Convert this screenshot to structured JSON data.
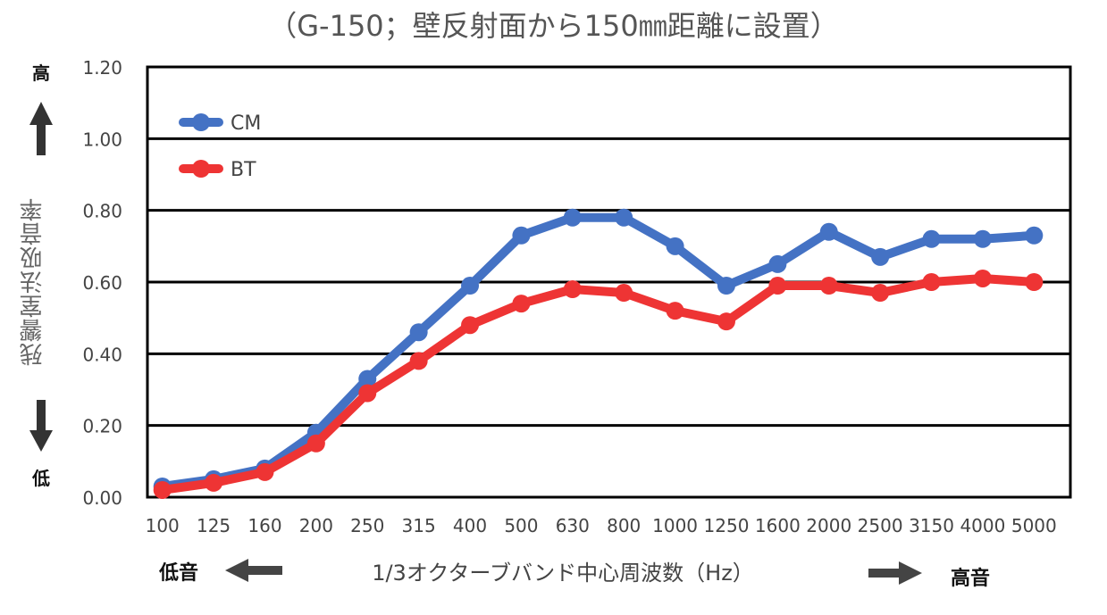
{
  "chart_data": {
    "type": "line",
    "title": "（G-150；壁反射面から150㎜距離に設置）",
    "ylabel": "残響室法吸音率",
    "xlabel": "1/3オクターブバンド中心周波数（Hz）",
    "ylim": [
      0,
      1.2
    ],
    "yticks": [
      "0.00",
      "0.20",
      "0.40",
      "0.60",
      "0.80",
      "1.00",
      "1.20"
    ],
    "grid": true,
    "legend_position": "top-left",
    "categories": [
      "100",
      "125",
      "160",
      "200",
      "250",
      "315",
      "400",
      "500",
      "630",
      "800",
      "1000",
      "1250",
      "1600",
      "2000",
      "2500",
      "3150",
      "4000",
      "5000"
    ],
    "series": [
      {
        "name": "CM",
        "color": "#4472C4",
        "values": [
          0.03,
          0.05,
          0.08,
          0.18,
          0.33,
          0.46,
          0.59,
          0.73,
          0.78,
          0.78,
          0.7,
          0.59,
          0.65,
          0.74,
          0.67,
          0.72,
          0.72,
          0.73
        ]
      },
      {
        "name": "BT",
        "color": "#EE3434",
        "values": [
          0.02,
          0.04,
          0.07,
          0.15,
          0.29,
          0.38,
          0.48,
          0.54,
          0.58,
          0.57,
          0.52,
          0.49,
          0.59,
          0.59,
          0.57,
          0.6,
          0.61,
          0.6
        ]
      }
    ]
  },
  "annotations": {
    "high": "高",
    "low": "低",
    "x_low": "低音",
    "x_high": "高音"
  }
}
